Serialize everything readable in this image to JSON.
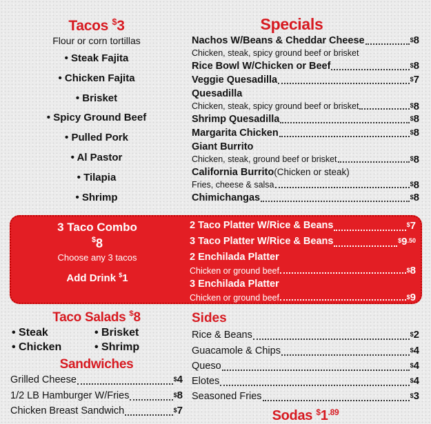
{
  "tacos": {
    "title": "Tacos",
    "price_symbol": "$",
    "price": "3",
    "subtitle": "Flour or corn tortillas",
    "items": [
      "Steak Fajita",
      "Chicken Fajita",
      "Brisket",
      "Spicy Ground Beef",
      "Pulled Pork",
      "Al Pastor",
      "Tilapia",
      "Shrimp"
    ]
  },
  "specials": {
    "title": "Specials",
    "rows": [
      {
        "text": "Nachos W/Beans & Cheddar  Cheese",
        "price": "8",
        "style": "main"
      },
      {
        "text": "Chicken, steak, spicy ground beef  or brisket",
        "style": "sub"
      },
      {
        "text": "Rice Bowl W/Chicken or Beef",
        "price": "8",
        "style": "main"
      },
      {
        "text": "Veggie Quesadilla",
        "price": "7",
        "style": "main"
      },
      {
        "text": "Quesadilla",
        "style": "main"
      },
      {
        "text": "Chicken, steak, spicy ground beef or brisket",
        "price": "8",
        "style": "sub"
      },
      {
        "text": "Shrimp Quesadilla",
        "price": "8",
        "style": "main"
      },
      {
        "text": "Margarita Chicken",
        "price": "8",
        "style": "main"
      },
      {
        "text": "Giant Burrito",
        "style": "main"
      },
      {
        "text": "Chicken, steak, ground beef or brisket",
        "price": "8",
        "style": "sub"
      },
      {
        "text": "California Burrito",
        "note": " (Chicken or steak)",
        "style": "main"
      },
      {
        "text": "Fries, cheese & salsa",
        "price": "8",
        "style": "sub"
      },
      {
        "text": "Chimichangas",
        "price": "8",
        "style": "main"
      }
    ]
  },
  "combo": {
    "title": "3 Taco Combo",
    "price": "8",
    "subtitle": "Choose any 3  tacos",
    "drink_label": "Add Drink",
    "drink_price": "1",
    "rows": [
      {
        "text": "2 Taco Platter W/Rice & Beans",
        "price": "7",
        "style": "main"
      },
      {
        "text": "3 Taco Platter W/Rice & Beans",
        "price": "9",
        "cents": "50",
        "style": "main"
      },
      {
        "text": "2 Enchilada Platter",
        "style": "main"
      },
      {
        "text": "Chicken or ground beef",
        "price": "8",
        "style": "sub"
      },
      {
        "text": "3 Enchilada Platter",
        "style": "main"
      },
      {
        "text": "Chicken or ground beef",
        "price": "9",
        "style": "sub"
      }
    ]
  },
  "taco_salads": {
    "title": "Taco Salads",
    "price": "8",
    "items": [
      "Steak",
      "Brisket",
      "Chicken",
      "Shrimp"
    ]
  },
  "sandwiches": {
    "title": "Sandwiches",
    "rows": [
      {
        "text": "Grilled Cheese",
        "price": "4"
      },
      {
        "text": "1/2 LB Hamburger W/Fries",
        "price": "8"
      },
      {
        "text": "Chicken Breast Sandwich",
        "price": "7"
      }
    ]
  },
  "sides": {
    "title": "Sides",
    "rows": [
      {
        "text": "Rice & Beans",
        "price": "2"
      },
      {
        "text": "Guacamole & Chips",
        "price": "4"
      },
      {
        "text": "Queso",
        "price": "4"
      },
      {
        "text": "Elotes",
        "price": "4"
      },
      {
        "text": "Seasoned Fries",
        "price": "3"
      }
    ]
  },
  "sodas": {
    "title": "Sodas",
    "price": "1",
    "cents": "89"
  },
  "colors": {
    "accent_red": "#d71920",
    "combo_bg": "#e31e24"
  }
}
